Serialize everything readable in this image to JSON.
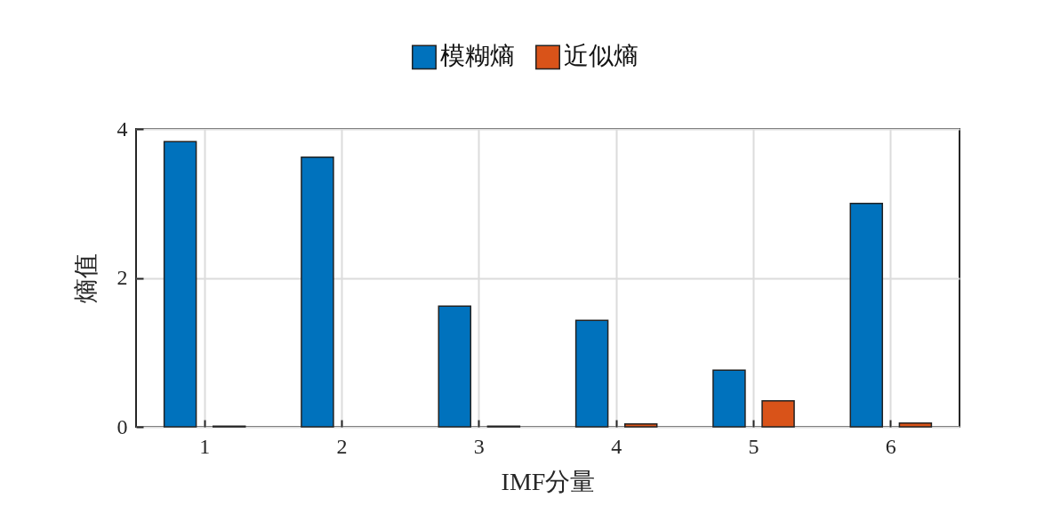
{
  "chart_data": {
    "type": "bar",
    "xlabel": "IMF分量",
    "ylabel": "熵值",
    "categories": [
      "1",
      "2",
      "3",
      "4",
      "5",
      "6"
    ],
    "series": [
      {
        "name": "模糊熵",
        "color": "#0072bd",
        "values": [
          3.83,
          3.62,
          1.62,
          1.43,
          0.76,
          3.0
        ]
      },
      {
        "name": "近似熵",
        "color": "#d95319",
        "values": [
          0.01,
          null,
          0.01,
          0.04,
          0.35,
          0.05
        ]
      }
    ],
    "ylim": [
      0,
      4
    ],
    "yticks": [
      0,
      2,
      4
    ],
    "grid": true,
    "legend": "top"
  }
}
